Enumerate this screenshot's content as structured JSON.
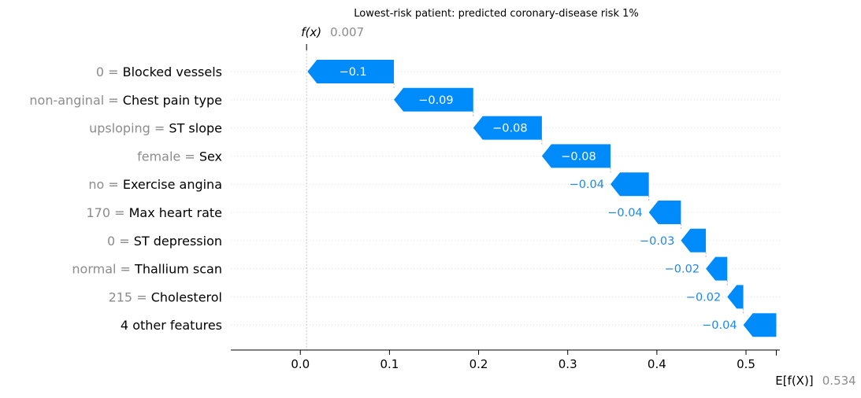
{
  "chart_data": {
    "type": "waterfall",
    "title": "Lowest-risk patient: predicted coronary-disease risk 1%",
    "fx_label": "f(x)",
    "fx_value": "0.007",
    "ex_label": "E[f(X)]",
    "ex_value": "0.534",
    "base_value": 0.534,
    "output_value": 0.007,
    "xlim": [
      -0.078,
      0.538
    ],
    "x_ticks": [
      0.0,
      0.1,
      0.2,
      0.3,
      0.4,
      0.5
    ],
    "x_tick_labels": [
      "0.0",
      "0.1",
      "0.2",
      "0.3",
      "0.4",
      "0.5"
    ],
    "features": [
      {
        "value": "0",
        "name": "Blocked vessels",
        "contribution": -0.097,
        "label": "−0.1"
      },
      {
        "value": "non-anginal",
        "name": "Chest pain type",
        "contribution": -0.089,
        "label": "−0.09"
      },
      {
        "value": "upsloping",
        "name": "ST slope",
        "contribution": -0.077,
        "label": "−0.08"
      },
      {
        "value": "female",
        "name": "Sex",
        "contribution": -0.077,
        "label": "−0.08"
      },
      {
        "value": "no",
        "name": "Exercise angina",
        "contribution": -0.043,
        "label": "−0.04"
      },
      {
        "value": "170",
        "name": "Max heart rate",
        "contribution": -0.036,
        "label": "−0.04"
      },
      {
        "value": "0",
        "name": "ST depression",
        "contribution": -0.028,
        "label": "−0.03"
      },
      {
        "value": "normal",
        "name": "Thallium scan",
        "contribution": -0.024,
        "label": "−0.02"
      },
      {
        "value": "215",
        "name": "Cholesterol",
        "contribution": -0.018,
        "label": "−0.02"
      },
      {
        "value": "",
        "name": "4 other features",
        "contribution": -0.037,
        "label": "−0.04"
      }
    ],
    "colors": {
      "negative": "#008bfb",
      "negative_text": "#1e88e5",
      "muted": "#8c8c8c"
    }
  }
}
